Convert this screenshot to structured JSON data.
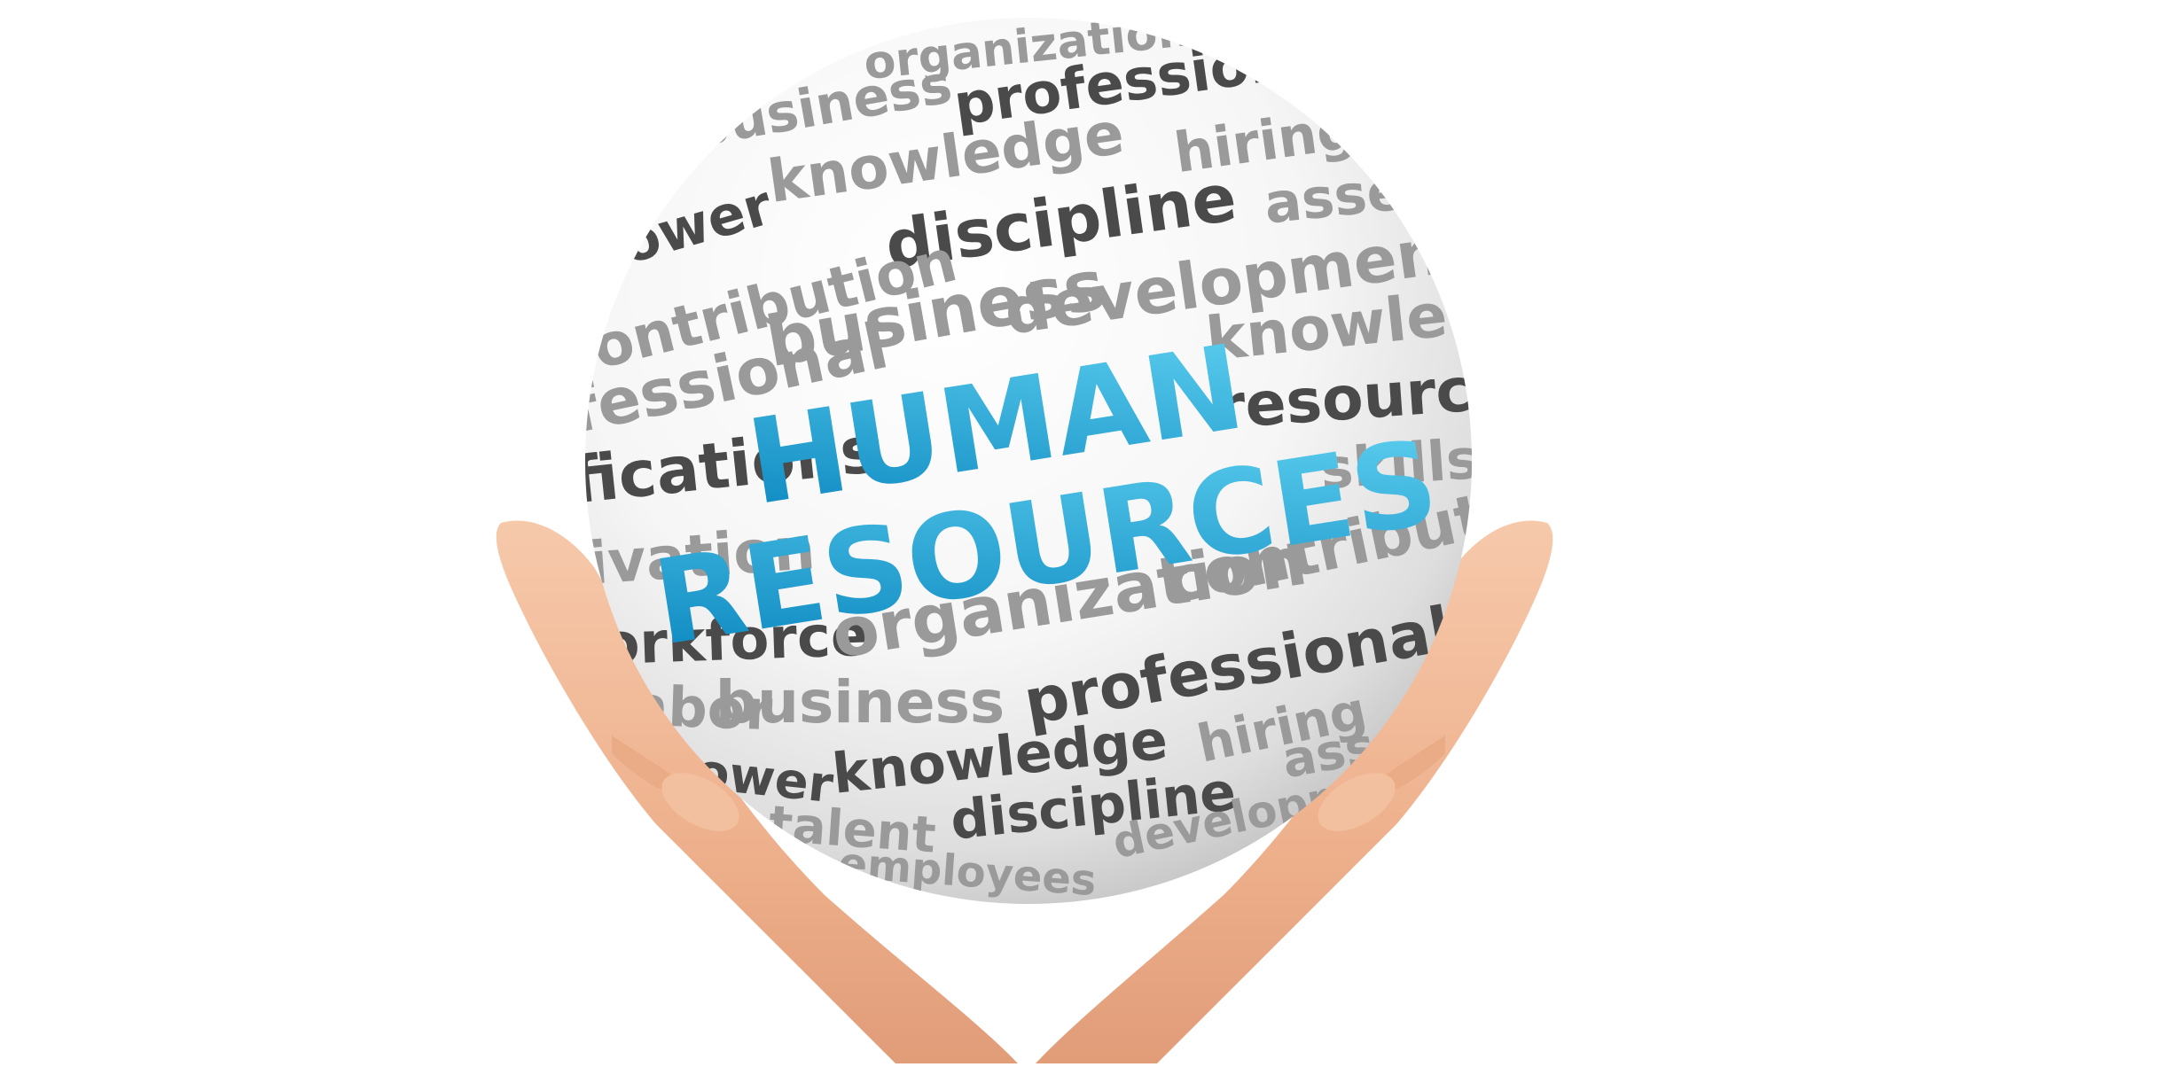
{
  "headline": {
    "line1": "HUMAN",
    "line2": "RESOURCES"
  },
  "sphere_words": [
    {
      "text": "organization",
      "shade": "light"
    },
    {
      "text": "business",
      "shade": "light"
    },
    {
      "text": "professional",
      "shade": "dark"
    },
    {
      "text": "knowledge",
      "shade": "light"
    },
    {
      "text": "hiring",
      "shade": "light"
    },
    {
      "text": "power",
      "shade": "dark"
    },
    {
      "text": "discipline",
      "shade": "dark"
    },
    {
      "text": "assets",
      "shade": "light"
    },
    {
      "text": "contribution",
      "shade": "light"
    },
    {
      "text": "development",
      "shade": "light"
    },
    {
      "text": "business",
      "shade": "light"
    },
    {
      "text": "knowledge",
      "shade": "light"
    },
    {
      "text": "professional",
      "shade": "light"
    },
    {
      "text": "resources",
      "shade": "dark"
    },
    {
      "text": "qualifications",
      "shade": "dark"
    },
    {
      "text": "skills",
      "shade": "light"
    },
    {
      "text": "motivation",
      "shade": "light"
    },
    {
      "text": "contribution",
      "shade": "light"
    },
    {
      "text": "workforce",
      "shade": "dark"
    },
    {
      "text": "organization",
      "shade": "light"
    },
    {
      "text": "labor",
      "shade": "light"
    },
    {
      "text": "business",
      "shade": "light"
    },
    {
      "text": "professional",
      "shade": "dark"
    },
    {
      "text": "power",
      "shade": "dark"
    },
    {
      "text": "knowledge",
      "shade": "dark"
    },
    {
      "text": "hiring",
      "shade": "light"
    },
    {
      "text": "assets",
      "shade": "light"
    },
    {
      "text": "talent",
      "shade": "light"
    },
    {
      "text": "discipline",
      "shade": "dark"
    },
    {
      "text": "development",
      "shade": "light"
    },
    {
      "text": "employees",
      "shade": "light"
    }
  ],
  "colors": {
    "word_dark": "#4a4a4a",
    "word_light": "#9a9a9a",
    "headline_gradient_start": "#0a86bf",
    "headline_gradient_end": "#5ed0f0",
    "skin": "#f1b896",
    "background": "#ffffff"
  }
}
